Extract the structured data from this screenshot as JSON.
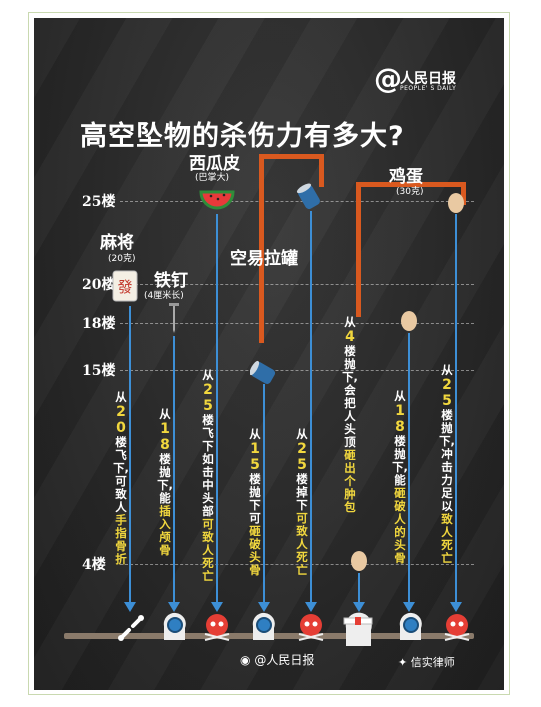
{
  "brand": {
    "at": "@",
    "name": "人民日报",
    "english": "PEOPLE' S DAILY"
  },
  "title": "高空坠物的杀伤力有多大?",
  "floors": [
    {
      "label": "25楼"
    },
    {
      "label": "20楼"
    },
    {
      "label": "18楼"
    },
    {
      "label": "15楼"
    },
    {
      "label": "4楼"
    }
  ],
  "items": {
    "mahjong": {
      "name": "麻将",
      "sub": "(20克)"
    },
    "nail": {
      "name": "铁钉",
      "sub": "(4厘米长)"
    },
    "watermelon": {
      "name": "西瓜皮",
      "sub": "(巴掌大)"
    },
    "can": {
      "name": "空易拉罐"
    },
    "egg": {
      "name": "鸡蛋",
      "sub": "(30克)"
    }
  },
  "captions": {
    "mahjong": {
      "pre": "从",
      "num": "20",
      "mid": "楼飞下,可致人",
      "hl": "手指骨折"
    },
    "nail": {
      "pre": "从",
      "num": "18",
      "mid": "楼抛下,能",
      "hl": "插入颅骨"
    },
    "watermelon": {
      "pre": "从",
      "num": "25",
      "mid": "楼飞下如击中头部",
      "hl": "可致人死亡"
    },
    "can15": {
      "pre": "从",
      "num": "15",
      "mid": "楼抛下可",
      "hl": "砸破头骨"
    },
    "can25": {
      "pre": "从",
      "num": "25",
      "mid": "楼掉下",
      "hl": "可致人死亡"
    },
    "egg4": {
      "pre": "从",
      "num": "4",
      "mid": "楼抛下,会把人头顶",
      "hl": "砸出个肿包"
    },
    "egg18": {
      "pre": "从",
      "num": "18",
      "mid": "楼抛下,能",
      "hl": "砸破人的头骨"
    },
    "egg25": {
      "pre": "从",
      "num": "25",
      "mid": "楼抛下,冲击力足以",
      "hl": "致人死亡"
    }
  },
  "footer": {
    "source": "@人民日报",
    "watermark": "信实律师"
  },
  "colors": {
    "accent": "#d9591f",
    "line": "#3d8fd6",
    "highlight": "#f1d73e"
  }
}
